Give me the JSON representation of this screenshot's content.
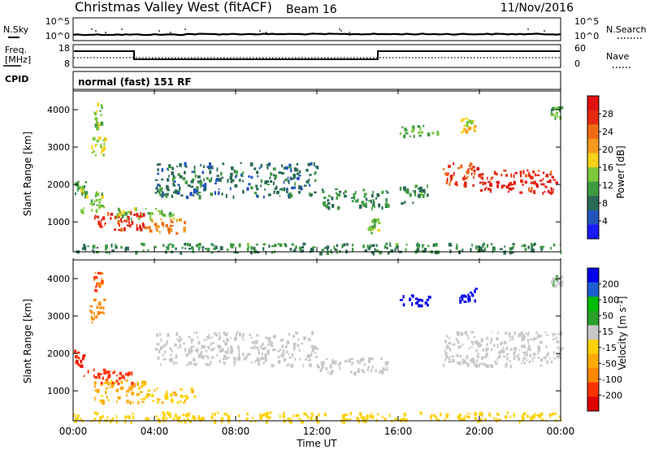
{
  "header": {
    "title": "Christmas Valley West (fitACF)",
    "beam": "Beam 16",
    "date": "11/Nov/2016"
  },
  "strip_labels": {
    "nsky": "N.Sky",
    "nsearch": "N.Search",
    "freq_line1": "Freq.",
    "freq_line2": "[MHz]",
    "nave": "Nave",
    "cpid": "CPID",
    "cpid_value": "normal (fast) 151 RF"
  },
  "noise_ticks": {
    "left": [
      "10^5",
      "10^0"
    ],
    "right": [
      "10^5",
      "10^0"
    ]
  },
  "freq_ticks": {
    "left": [
      "18",
      "8"
    ],
    "right": [
      "60",
      "0"
    ]
  },
  "colors": {
    "power_scale": [
      "#1a1aff",
      "#2255bb",
      "#2a6a55",
      "#3e9a42",
      "#7cc83a",
      "#f6d21a",
      "#f39a1c",
      "#ef6a14",
      "#e52a10",
      "#e41010"
    ],
    "velocity_scale": [
      "#e00000",
      "#ff3300",
      "#ff8800",
      "#ffaa00",
      "#ffd000",
      "#c8c8c8",
      "#2aa02a",
      "#00bb00",
      "#1b5ecf",
      "#0000ee"
    ],
    "velocity_neutral": "#c8c8c8"
  },
  "chart_data": [
    {
      "type": "heatmap",
      "name": "Power",
      "x_unit": "Time UT (hours)",
      "xlim": [
        0,
        24
      ],
      "ylim": [
        200,
        4500
      ],
      "xlabel": "Time UT",
      "ylabel": "Slant Range [km]",
      "xticks": [
        "00:00",
        "04:00",
        "08:00",
        "12:00",
        "16:00",
        "20:00",
        "00:00"
      ],
      "yticks": [
        1000,
        2000,
        3000,
        4000
      ],
      "colorbar": {
        "label": "Power [dB]",
        "min": 0,
        "max": 32,
        "ticks": [
          "4",
          "8",
          "12",
          "16",
          "20",
          "24",
          "28"
        ]
      },
      "regions": [
        {
          "t": [
            0.0,
            0.6
          ],
          "r": [
            1700,
            2100
          ],
          "v": 12
        },
        {
          "t": [
            0.3,
            1.5
          ],
          "r": [
            1300,
            1900
          ],
          "v": 14
        },
        {
          "t": [
            0.8,
            1.6
          ],
          "r": [
            2800,
            3300
          ],
          "v": 16
        },
        {
          "t": [
            1.0,
            1.4
          ],
          "r": [
            3500,
            4200
          ],
          "v": 14
        },
        {
          "t": [
            1.0,
            3.5
          ],
          "r": [
            800,
            1300
          ],
          "v": 28
        },
        {
          "t": [
            3.5,
            5.5
          ],
          "r": [
            700,
            1100
          ],
          "v": 22
        },
        {
          "t": [
            2.0,
            5.0
          ],
          "r": [
            1100,
            1400
          ],
          "v": 14
        },
        {
          "t": [
            4.0,
            12.0
          ],
          "r": [
            1700,
            2600
          ],
          "v": 8
        },
        {
          "t": [
            12.0,
            15.5
          ],
          "r": [
            1400,
            1900
          ],
          "v": 10
        },
        {
          "t": [
            14.5,
            15.0
          ],
          "r": [
            700,
            1100
          ],
          "v": 14
        },
        {
          "t": [
            16.0,
            17.5
          ],
          "r": [
            1500,
            2000
          ],
          "v": 10
        },
        {
          "t": [
            16.0,
            18.0
          ],
          "r": [
            3300,
            3600
          ],
          "v": 12
        },
        {
          "t": [
            19.0,
            19.8
          ],
          "r": [
            3400,
            3800
          ],
          "v": 18
        },
        {
          "t": [
            18.2,
            20.0
          ],
          "r": [
            2000,
            2600
          ],
          "v": 26
        },
        {
          "t": [
            20.0,
            23.8
          ],
          "r": [
            1800,
            2400
          ],
          "v": 28
        },
        {
          "t": [
            23.5,
            24.0
          ],
          "r": [
            3800,
            4100
          ],
          "v": 12
        },
        {
          "t": [
            0.0,
            24.0
          ],
          "r": [
            200,
            450
          ],
          "v": 10
        }
      ]
    },
    {
      "type": "heatmap",
      "name": "Velocity",
      "x_unit": "Time UT (hours)",
      "xlim": [
        0,
        24
      ],
      "ylim": [
        200,
        4500
      ],
      "xlabel": "Time UT",
      "ylabel": "Slant Range [km]",
      "xticks": [
        "00:00",
        "04:00",
        "08:00",
        "12:00",
        "16:00",
        "20:00",
        "00:00"
      ],
      "yticks": [
        1000,
        2000,
        3000,
        4000
      ],
      "colorbar": {
        "label": "Velocity [m s-1]",
        "min": -250,
        "max": 250,
        "ticks": [
          "-200",
          "-100",
          "-50",
          "-15",
          "15",
          "50",
          "100",
          "200"
        ]
      },
      "regions": [
        {
          "t": [
            0.0,
            0.5
          ],
          "r": [
            1700,
            2100
          ],
          "v": -200
        },
        {
          "t": [
            0.8,
            1.5
          ],
          "r": [
            2800,
            3500
          ],
          "v": -120
        },
        {
          "t": [
            1.0,
            1.4
          ],
          "r": [
            3700,
            4200
          ],
          "v": -150
        },
        {
          "t": [
            0.5,
            3.0
          ],
          "r": [
            1200,
            1600
          ],
          "v": -180
        },
        {
          "t": [
            1.0,
            3.5
          ],
          "r": [
            700,
            1300
          ],
          "v": -60
        },
        {
          "t": [
            3.5,
            6.0
          ],
          "r": [
            700,
            1100
          ],
          "v": -40
        },
        {
          "t": [
            4.0,
            12.0
          ],
          "r": [
            1700,
            2600
          ],
          "v": 0
        },
        {
          "t": [
            12.0,
            15.5
          ],
          "r": [
            1500,
            1900
          ],
          "v": 0
        },
        {
          "t": [
            16.0,
            17.5
          ],
          "r": [
            3300,
            3600
          ],
          "v": 220
        },
        {
          "t": [
            19.0,
            19.8
          ],
          "r": [
            3400,
            3800
          ],
          "v": 230
        },
        {
          "t": [
            18.2,
            24.0
          ],
          "r": [
            1700,
            2600
          ],
          "v": 0
        },
        {
          "t": [
            23.5,
            24.0
          ],
          "r": [
            3800,
            4100
          ],
          "v": 40
        },
        {
          "t": [
            0.0,
            24.0
          ],
          "r": [
            200,
            450
          ],
          "v": -30
        }
      ]
    }
  ]
}
